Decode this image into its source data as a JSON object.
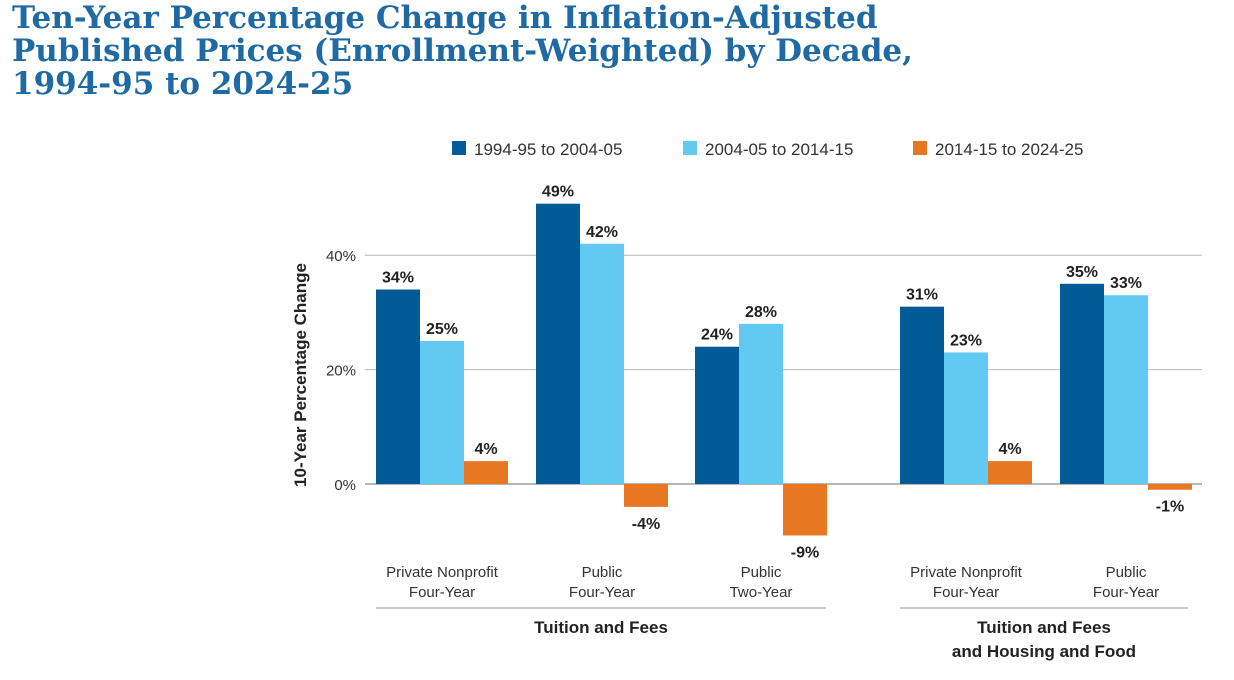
{
  "chart_data": {
    "type": "bar",
    "title_lines": [
      "Ten-Year Percentage Change in Inflation-Adjusted",
      "Published Prices (Enrollment-Weighted) by Decade,",
      "1994-95 to 2024-25"
    ],
    "ylabel": "10-Year Percentage Change",
    "ylim": [
      -10,
      50
    ],
    "y_ticks": [
      0,
      20,
      40
    ],
    "y_tick_labels": [
      "0%",
      "20%",
      "40%"
    ],
    "grid": true,
    "legend_position": "top",
    "categories": [
      [
        "Private Nonprofit",
        "Four-Year"
      ],
      [
        "Public",
        "Four-Year"
      ],
      [
        "Public",
        "Two-Year"
      ],
      [
        "Private Nonprofit",
        "Four-Year"
      ],
      [
        "Public",
        "Four-Year"
      ]
    ],
    "groups": [
      {
        "label": [
          "Tuition and Fees"
        ],
        "categories": [
          0,
          1,
          2
        ]
      },
      {
        "label": [
          "Tuition and Fees",
          "and Housing and Food"
        ],
        "categories": [
          3,
          4
        ]
      }
    ],
    "series": [
      {
        "name": "1994-95 to 2004-05",
        "color": "#005a96",
        "values": [
          34,
          49,
          24,
          31,
          35
        ],
        "labels": [
          "34%",
          "49%",
          "24%",
          "31%",
          "35%"
        ]
      },
      {
        "name": "2004-05 to 2014-15",
        "color": "#62c9f3",
        "values": [
          25,
          42,
          28,
          23,
          33
        ],
        "labels": [
          "25%",
          "42%",
          "28%",
          "23%",
          "33%"
        ]
      },
      {
        "name": "2014-15 to 2024-25",
        "color": "#e87722",
        "values": [
          4,
          -4,
          -9,
          4,
          -1
        ],
        "labels": [
          "4%",
          "-4%",
          "-9%",
          "4%",
          "-1%"
        ]
      }
    ]
  }
}
